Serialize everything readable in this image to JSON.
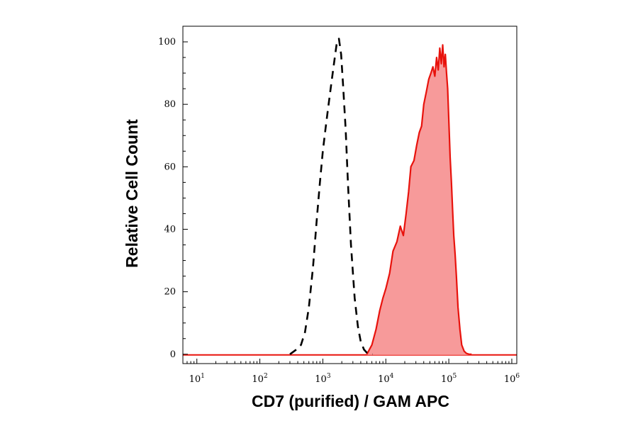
{
  "chart_data": {
    "type": "area",
    "title": "",
    "xlabel": "CD7 (purified) / GAM APC",
    "ylabel": "Relative Cell Count",
    "xscale": "log",
    "xlim": [
      6,
      1200000
    ],
    "ylim": [
      -3,
      105
    ],
    "x_ticks": [
      {
        "base": "10",
        "exp": "1",
        "value": 10
      },
      {
        "base": "10",
        "exp": "2",
        "value": 100
      },
      {
        "base": "10",
        "exp": "3",
        "value": 1000
      },
      {
        "base": "10",
        "exp": "4",
        "value": 10000
      },
      {
        "base": "10",
        "exp": "5",
        "value": 100000
      },
      {
        "base": "10",
        "exp": "6",
        "value": 1000000
      }
    ],
    "y_ticks": [
      "0",
      "20",
      "40",
      "60",
      "80",
      "100"
    ],
    "grid": false,
    "legend": "none",
    "colors": {
      "positive_line": "#e8120c",
      "positive_fill": "#f79a9a",
      "control_line": "#000000"
    },
    "series": [
      {
        "style": "dashed-black-outline",
        "x": [
          300,
          380,
          450,
          520,
          600,
          700,
          800,
          900,
          1000,
          1100,
          1200,
          1350,
          1500,
          1650,
          1800,
          1950,
          2100,
          2300,
          2500,
          2800,
          3200,
          3600,
          4000,
          4500,
          5000,
          5600,
          6200
        ],
        "y": [
          0,
          1.5,
          3,
          7,
          15,
          28,
          43,
          55,
          65,
          72,
          78,
          86,
          93,
          99,
          101,
          96,
          86,
          72,
          55,
          35,
          18,
          9,
          4,
          1.5,
          0.5,
          0,
          0
        ]
      },
      {
        "style": "filled-red",
        "x": [
          5000,
          6000,
          7000,
          8000,
          9000,
          10000,
          11500,
          13000,
          15000,
          17000,
          19000,
          21000,
          23000,
          25000,
          28000,
          31000,
          34000,
          37000,
          40000,
          44000,
          48000,
          52000,
          56000,
          60000,
          64000,
          68000,
          72000,
          76000,
          80000,
          84000,
          88000,
          92000,
          96000,
          100000,
          105000,
          110000,
          115000,
          120000,
          126000,
          132000,
          140000,
          150000,
          160000,
          175000,
          190000,
          210000,
          230000
        ],
        "y": [
          0,
          3,
          8,
          14,
          18,
          21,
          26,
          33,
          36,
          41,
          38,
          45,
          52,
          60,
          62,
          67,
          71,
          73,
          80,
          84,
          88,
          90,
          92,
          89,
          95,
          91,
          98,
          93,
          99,
          92,
          96,
          90,
          85,
          75,
          63,
          55,
          46,
          38,
          32,
          25,
          15,
          8,
          3,
          1,
          0.3,
          0,
          0
        ]
      }
    ]
  }
}
